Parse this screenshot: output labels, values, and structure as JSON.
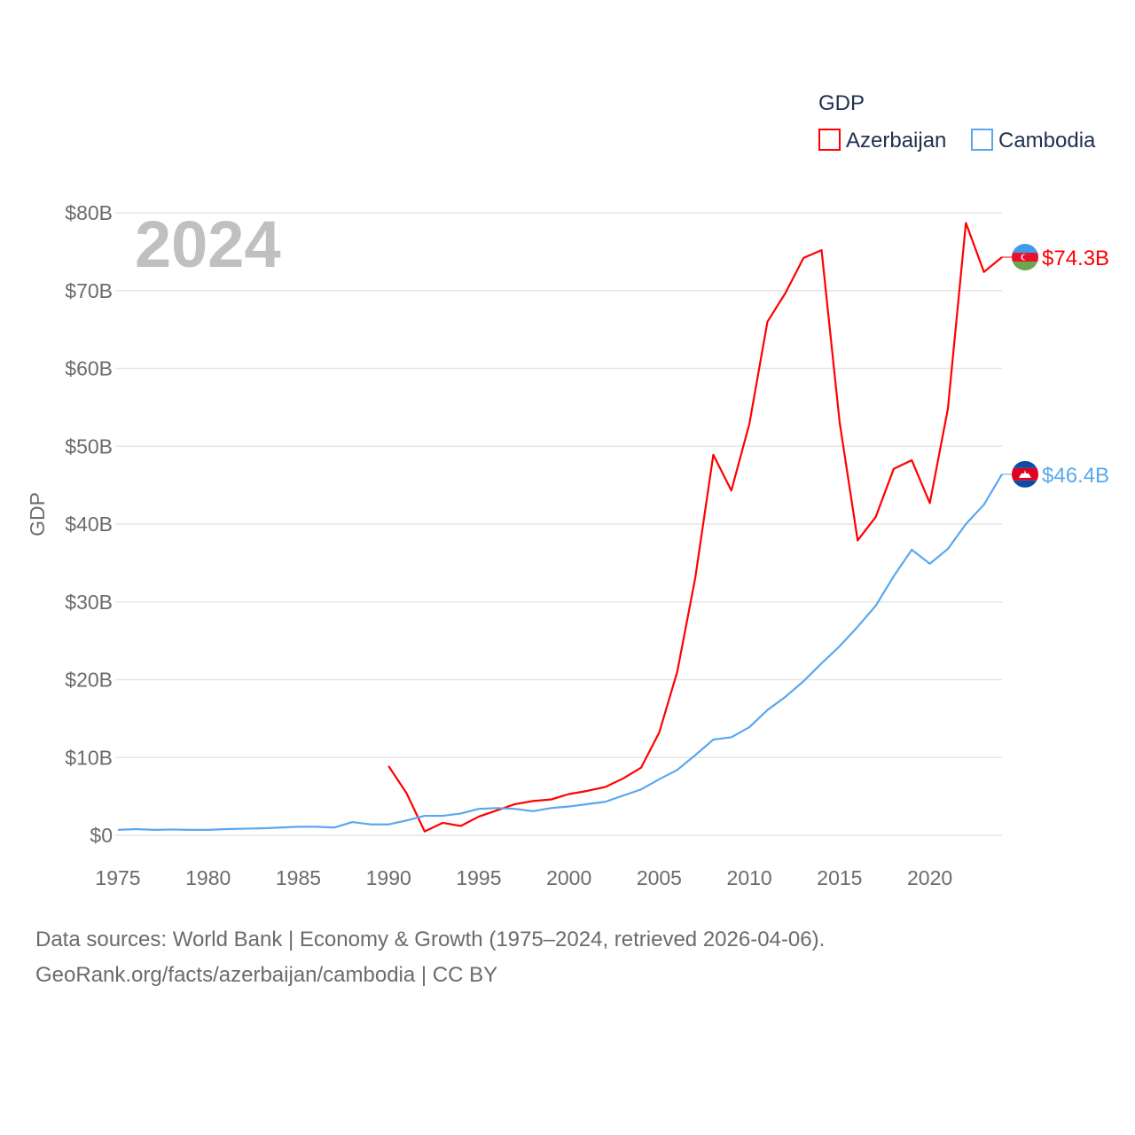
{
  "chart_data": {
    "type": "line",
    "title": "",
    "year_label": "2024",
    "ylabel": "GDP",
    "xlabel": "",
    "xlim": [
      1975,
      2024
    ],
    "ylim": [
      0,
      80
    ],
    "y_unit": "billion USD",
    "grid": true,
    "x_ticks": [
      1975,
      1980,
      1985,
      1990,
      1995,
      2000,
      2005,
      2010,
      2015,
      2020
    ],
    "x_tick_labels": [
      "1975",
      "1980",
      "1985",
      "1990",
      "1995",
      "2000",
      "2005",
      "2010",
      "2015",
      "2020"
    ],
    "y_ticks": [
      0,
      10,
      20,
      30,
      40,
      50,
      60,
      70,
      80
    ],
    "y_tick_labels": [
      "$0",
      "$10B",
      "$20B",
      "$30B",
      "$40B",
      "$50B",
      "$60B",
      "$70B",
      "$80B"
    ],
    "legend": {
      "title": "GDP",
      "placement": "top-right"
    },
    "series": [
      {
        "name": "Azerbaijan",
        "color": "#ff0000",
        "end_label": "$74.3B",
        "x": [
          1990,
          1991,
          1992,
          1993,
          1994,
          1995,
          1996,
          1997,
          1998,
          1999,
          2000,
          2001,
          2002,
          2003,
          2004,
          2005,
          2006,
          2007,
          2008,
          2009,
          2010,
          2011,
          2012,
          2013,
          2014,
          2015,
          2016,
          2017,
          2018,
          2019,
          2020,
          2021,
          2022,
          2023,
          2024
        ],
        "values": [
          8.9,
          5.4,
          0.5,
          1.6,
          1.2,
          2.4,
          3.2,
          4.0,
          4.4,
          4.6,
          5.3,
          5.7,
          6.2,
          7.3,
          8.7,
          13.2,
          21.0,
          33.1,
          48.9,
          44.3,
          52.9,
          66.0,
          69.7,
          74.2,
          75.2,
          53.1,
          37.9,
          40.9,
          47.1,
          48.2,
          42.7,
          54.8,
          78.7,
          72.4,
          74.3
        ]
      },
      {
        "name": "Cambodia",
        "color": "#5aa7ef",
        "end_label": "$46.4B",
        "x": [
          1975,
          1976,
          1977,
          1978,
          1979,
          1980,
          1981,
          1982,
          1983,
          1984,
          1985,
          1986,
          1987,
          1988,
          1989,
          1990,
          1991,
          1992,
          1993,
          1994,
          1995,
          1996,
          1997,
          1998,
          1999,
          2000,
          2001,
          2002,
          2003,
          2004,
          2005,
          2006,
          2007,
          2008,
          2009,
          2010,
          2011,
          2012,
          2013,
          2014,
          2015,
          2016,
          2017,
          2018,
          2019,
          2020,
          2021,
          2022,
          2023,
          2024
        ],
        "values": [
          0.7,
          0.8,
          0.7,
          0.75,
          0.7,
          0.7,
          0.8,
          0.85,
          0.9,
          1.0,
          1.1,
          1.1,
          1.0,
          1.7,
          1.4,
          1.4,
          1.9,
          2.5,
          2.5,
          2.8,
          3.4,
          3.5,
          3.4,
          3.1,
          3.5,
          3.7,
          4.0,
          4.3,
          5.1,
          5.9,
          7.2,
          8.4,
          10.3,
          12.3,
          12.6,
          13.9,
          16.1,
          17.8,
          19.8,
          22.1,
          24.3,
          26.8,
          29.5,
          33.3,
          36.7,
          34.9,
          36.8,
          40.0,
          42.5,
          46.4
        ]
      }
    ]
  },
  "footer": {
    "line1": "Data sources: World Bank | Economy & Growth (1975–2024, retrieved 2026-04-06).",
    "line2": "GeoRank.org/facts/azerbaijan/cambodia | CC BY"
  }
}
